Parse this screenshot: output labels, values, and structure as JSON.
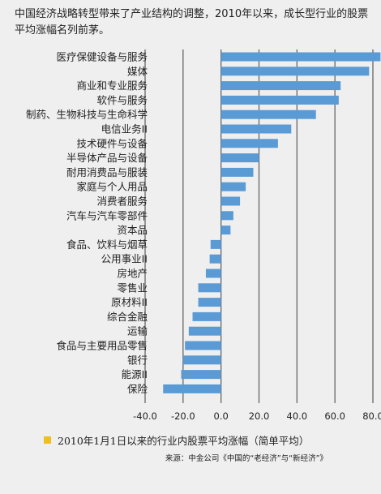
{
  "header": {
    "title": "中国经济战略转型带来了产业结构的调整，2010年以来，成长型行业的股票平均涨幅名列前茅。"
  },
  "legend": {
    "label": "2010年1月1日以来的行业内股票平均涨幅（简单平均）",
    "swatch_color": "#f1be1f"
  },
  "source": {
    "text": "来源：中金公司《中国的“老经济”与“新经济”》"
  },
  "colors": {
    "bar": "#5b9bd5",
    "axis": "#666666"
  },
  "chart_data": {
    "type": "bar",
    "orientation": "horizontal",
    "title": "",
    "xlabel": "",
    "ylabel": "",
    "xlim": [
      -40,
      80
    ],
    "xticks": [
      -40,
      -20,
      0,
      20,
      40,
      60,
      80
    ],
    "xtick_labels": [
      "-40.0",
      "-20.0",
      "0.0",
      "20.0",
      "40.0",
      "60.0",
      "80.0"
    ],
    "grid": true,
    "series": [
      {
        "name": "2010年1月1日以来的行业内股票平均涨幅（简单平均）",
        "categories": [
          "医疗保健设备与服务",
          "媒体",
          "商业和专业服务",
          "软件与服务",
          "制药、生物科技与生命科学",
          "电信业务II",
          "技术硬件与设备",
          "半导体产品与设备",
          "耐用消费品与服装",
          "家庭与个人用品",
          "消费者服务",
          "汽车与汽车零部件",
          "资本品",
          "食品、饮料与烟草",
          "公用事业II",
          "房地产",
          "零售业",
          "原材料II",
          "综合金融",
          "运输",
          "食品与主要用品零售",
          "银行",
          "能源II",
          "保险"
        ],
        "values": [
          84,
          78,
          63,
          62,
          50,
          37,
          30,
          20,
          17,
          13,
          10,
          6.5,
          5,
          -5.5,
          -6,
          -8,
          -12,
          -12,
          -15,
          -17,
          -19,
          -20,
          -21,
          -30.5
        ]
      }
    ]
  }
}
